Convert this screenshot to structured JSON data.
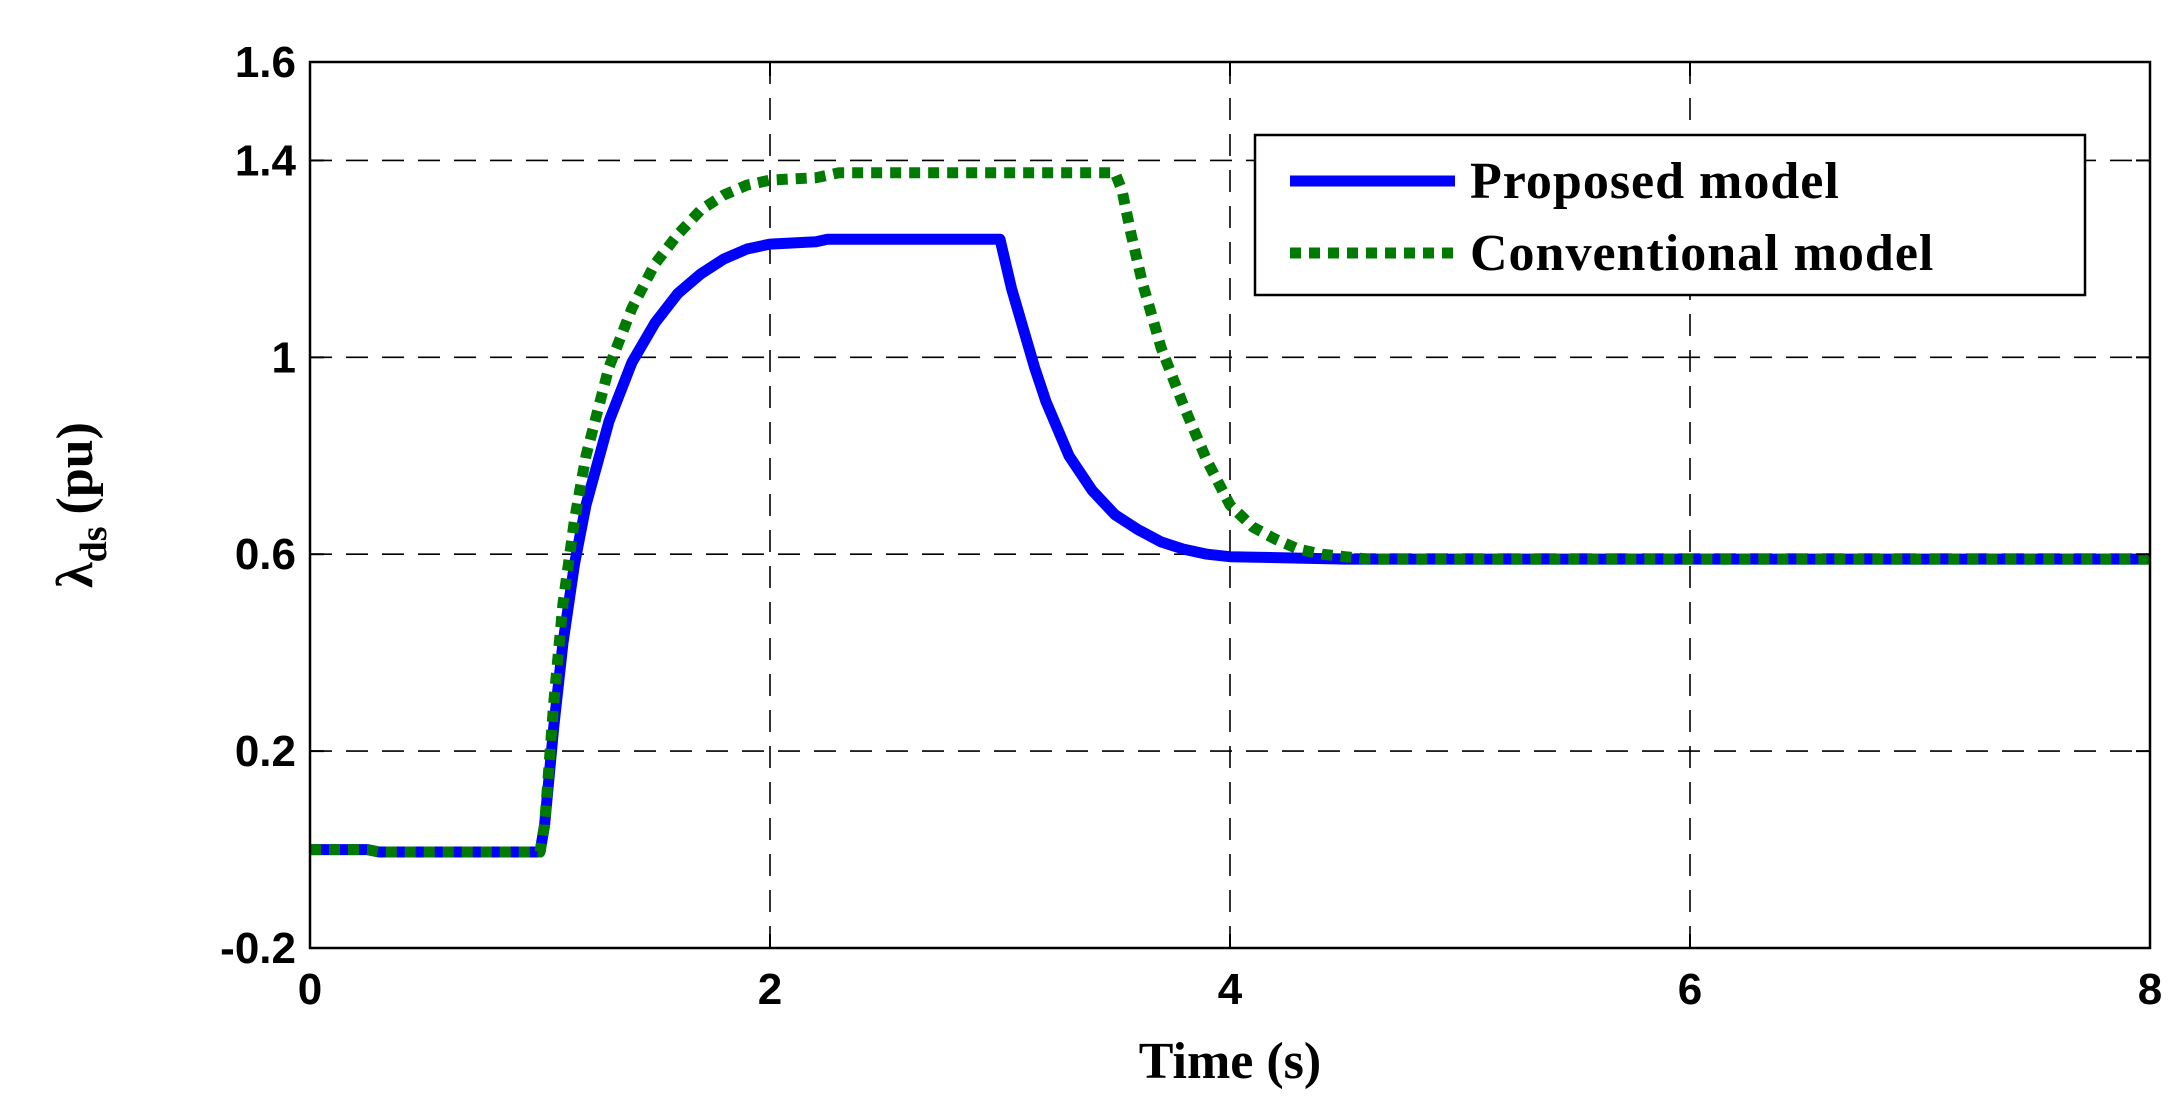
{
  "chart_data": {
    "type": "line",
    "xlabel": "Time (s)",
    "ylabel_main": "λ",
    "ylabel_sub": "ds",
    "ylabel_unit": "(pu)",
    "xlim": [
      0,
      8
    ],
    "ylim": [
      -0.2,
      1.6
    ],
    "x_ticks": [
      0,
      2,
      4,
      6,
      8
    ],
    "x_tick_labels": [
      "0",
      "2",
      "4",
      "6",
      "8"
    ],
    "y_ticks": [
      -0.2,
      0.2,
      0.6,
      1.0,
      1.4,
      1.6
    ],
    "y_tick_labels": [
      "-0.2",
      "0.2",
      "0.6",
      "1",
      "1.4",
      "1.6"
    ],
    "grid": true,
    "legend_position": "top-right",
    "series": [
      {
        "name": "Proposed model",
        "color": "#0000ff",
        "style": "solid",
        "points": [
          [
            0,
            0.0
          ],
          [
            0.25,
            0.0
          ],
          [
            0.3,
            -0.005
          ],
          [
            1.0,
            -0.005
          ],
          [
            1.02,
            0.05
          ],
          [
            1.06,
            0.25
          ],
          [
            1.1,
            0.42
          ],
          [
            1.15,
            0.58
          ],
          [
            1.2,
            0.7
          ],
          [
            1.3,
            0.87
          ],
          [
            1.4,
            0.99
          ],
          [
            1.5,
            1.07
          ],
          [
            1.6,
            1.13
          ],
          [
            1.7,
            1.17
          ],
          [
            1.8,
            1.2
          ],
          [
            1.9,
            1.22
          ],
          [
            2.0,
            1.23
          ],
          [
            2.2,
            1.235
          ],
          [
            2.25,
            1.24
          ],
          [
            3.0,
            1.24
          ],
          [
            3.02,
            1.2
          ],
          [
            3.05,
            1.14
          ],
          [
            3.1,
            1.06
          ],
          [
            3.15,
            0.98
          ],
          [
            3.2,
            0.91
          ],
          [
            3.3,
            0.8
          ],
          [
            3.4,
            0.73
          ],
          [
            3.5,
            0.68
          ],
          [
            3.6,
            0.65
          ],
          [
            3.7,
            0.625
          ],
          [
            3.8,
            0.61
          ],
          [
            3.9,
            0.6
          ],
          [
            4.0,
            0.595
          ],
          [
            4.5,
            0.59
          ],
          [
            8.0,
            0.59
          ]
        ]
      },
      {
        "name": "Conventional model",
        "color": "#007a00",
        "style": "dotted",
        "points": [
          [
            0,
            0.0
          ],
          [
            0.25,
            0.0
          ],
          [
            0.3,
            -0.005
          ],
          [
            1.0,
            -0.005
          ],
          [
            1.02,
            0.05
          ],
          [
            1.06,
            0.3
          ],
          [
            1.1,
            0.5
          ],
          [
            1.15,
            0.67
          ],
          [
            1.2,
            0.8
          ],
          [
            1.3,
            0.98
          ],
          [
            1.4,
            1.1
          ],
          [
            1.5,
            1.19
          ],
          [
            1.6,
            1.25
          ],
          [
            1.7,
            1.3
          ],
          [
            1.8,
            1.33
          ],
          [
            1.9,
            1.35
          ],
          [
            2.0,
            1.36
          ],
          [
            2.2,
            1.365
          ],
          [
            2.3,
            1.375
          ],
          [
            3.5,
            1.375
          ],
          [
            3.53,
            1.34
          ],
          [
            3.57,
            1.25
          ],
          [
            3.62,
            1.15
          ],
          [
            3.7,
            1.02
          ],
          [
            3.8,
            0.9
          ],
          [
            3.9,
            0.79
          ],
          [
            4.0,
            0.7
          ],
          [
            4.1,
            0.655
          ],
          [
            4.2,
            0.63
          ],
          [
            4.3,
            0.61
          ],
          [
            4.4,
            0.6
          ],
          [
            4.5,
            0.595
          ],
          [
            4.6,
            0.59
          ],
          [
            8.0,
            0.59
          ]
        ]
      }
    ]
  }
}
